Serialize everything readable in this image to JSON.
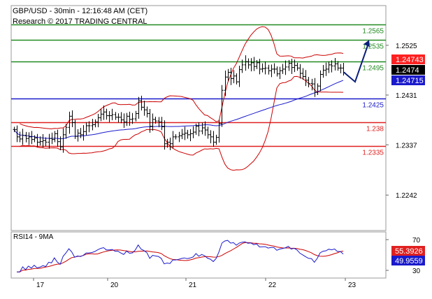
{
  "header": {
    "line1": "GBP/USD - 30min - 12:16:48 AM (CET)",
    "line2": "Research © 2017 TRADING CENTRAL"
  },
  "chart_data": {
    "type": "candlestick",
    "instrument": "GBP/USD",
    "timeframe": "30min",
    "x_labels": [
      "17",
      "20",
      "21",
      "22",
      "23"
    ],
    "price_axis": {
      "ticks": [
        "1.2525",
        "1.2431",
        "1.2337",
        "1.2242"
      ],
      "ylim": [
        1.2175,
        1.26
      ]
    },
    "current_price_labels": [
      {
        "text": "1.24743",
        "color": "#ff2020"
      },
      {
        "text": "1.2474",
        "color": "#000000"
      },
      {
        "text": "1.24715",
        "color": "#1a1acc"
      }
    ],
    "levels": [
      {
        "value": 1.2565,
        "label": "1.2565",
        "color": "#228b22"
      },
      {
        "value": 1.2535,
        "label": "1.2535",
        "color": "#228b22"
      },
      {
        "value": 1.2495,
        "label": "1.2495",
        "color": "#228b22"
      },
      {
        "value": 1.2425,
        "label": "1.2425",
        "color": "#1a1acc"
      },
      {
        "value": 1.238,
        "label": "1.238",
        "color": "#e02020"
      },
      {
        "value": 1.2335,
        "label": "1.2335",
        "color": "#e02020"
      }
    ],
    "price_series": [
      1.2366,
      1.2352,
      1.2348,
      1.2355,
      1.2349,
      1.2352,
      1.2347,
      1.235,
      1.2342,
      1.2343,
      1.2345,
      1.2342,
      1.2349,
      1.2347,
      1.2358,
      1.2343,
      1.2333,
      1.2356,
      1.237,
      1.2391,
      1.2379,
      1.2353,
      1.2359,
      1.2356,
      1.2362,
      1.2373,
      1.2373,
      1.2375,
      1.238,
      1.2388,
      1.2395,
      1.2399,
      1.2392,
      1.2392,
      1.2394,
      1.2389,
      1.2389,
      1.2384,
      1.238,
      1.2391,
      1.2385,
      1.2386,
      1.2396,
      1.242,
      1.2408,
      1.2403,
      1.2396,
      1.2372,
      1.2385,
      1.2382,
      1.238,
      1.2371,
      1.2339,
      1.2342,
      1.2339,
      1.2352,
      1.2352,
      1.2354,
      1.2357,
      1.2359,
      1.2356,
      1.2358,
      1.2361,
      1.2372,
      1.2363,
      1.2369,
      1.2365,
      1.2356,
      1.2352,
      1.2342,
      1.2351,
      1.2377,
      1.244,
      1.2465,
      1.2474,
      1.2462,
      1.2467,
      1.2456,
      1.2479,
      1.2488,
      1.2494,
      1.2488,
      1.2492,
      1.2485,
      1.2492,
      1.248,
      1.2481,
      1.2482,
      1.2477,
      1.248,
      1.248,
      1.2471,
      1.2477,
      1.248,
      1.2484,
      1.2491,
      1.2483,
      1.2487,
      1.2482,
      1.2472,
      1.2466,
      1.2459,
      1.2453,
      1.2452,
      1.2436,
      1.2448,
      1.247,
      1.2478,
      1.248,
      1.2488,
      1.2486,
      1.249,
      1.2482,
      1.2482,
      1.2474
    ],
    "projection_arrow": {
      "from": 1.2472,
      "to": 1.2535
    },
    "rsi": {
      "title": "RSI14 - 9MA",
      "ticks": [
        "70",
        "30"
      ],
      "ylim": [
        20,
        80
      ],
      "rsi_label": {
        "text": "49.9559",
        "color": "#1a1acc"
      },
      "ma_label": {
        "text": "55.3926",
        "color": "#e02020"
      }
    }
  }
}
